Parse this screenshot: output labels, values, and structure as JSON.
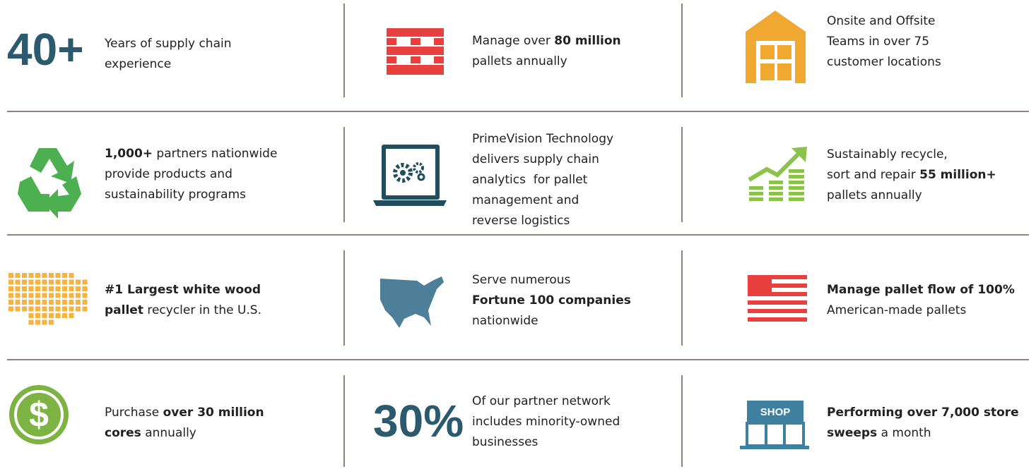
{
  "cells": [
    {
      "big": "40+",
      "lines": [
        [
          {
            "t": "Years of supply chain"
          }
        ],
        [
          {
            "t": "experience"
          }
        ]
      ]
    },
    {
      "lines": [
        [
          {
            "t": "Manage over "
          },
          {
            "b": "80 million"
          }
        ],
        [
          {
            "t": "pallets annually"
          }
        ]
      ]
    },
    {
      "lines": [
        [
          {
            "t": "Onsite and Offsite"
          }
        ],
        [
          {
            "t": "Teams in over 75"
          }
        ],
        [
          {
            "t": "customer locations"
          }
        ]
      ]
    },
    {
      "lines": [
        [
          {
            "b": "1,000+"
          },
          {
            "t": " partners nationwide"
          }
        ],
        [
          {
            "t": "provide products and"
          }
        ],
        [
          {
            "t": "sustainability programs"
          }
        ]
      ]
    },
    {
      "lines": [
        [
          {
            "t": "PrimeVision Technology"
          }
        ],
        [
          {
            "t": "delivers supply chain"
          }
        ],
        [
          {
            "t": "analytics  for pallet"
          }
        ],
        [
          {
            "t": "management and"
          }
        ],
        [
          {
            "t": "reverse logistics"
          }
        ]
      ]
    },
    {
      "lines": [
        [
          {
            "t": "Sustainably recycle,"
          }
        ],
        [
          {
            "t": "sort and repair "
          },
          {
            "b": "55 million+"
          }
        ],
        [
          {
            "t": "pallets annually"
          }
        ]
      ]
    },
    {
      "lines": [
        [
          {
            "b": "#1 Largest white wood"
          }
        ],
        [
          {
            "b": "pallet"
          },
          {
            "t": " recycler in the U.S."
          }
        ]
      ]
    },
    {
      "lines": [
        [
          {
            "t": "Serve numerous"
          }
        ],
        [
          {
            "b": "Fortune 100 companies"
          }
        ],
        [
          {
            "t": "nationwide"
          }
        ]
      ]
    },
    {
      "lines": [
        [
          {
            "b": "Manage pallet flow of 100%"
          }
        ],
        [
          {
            "t": "American-made pallets"
          }
        ]
      ]
    },
    {
      "lines": [
        [
          {
            "t": "Purchase "
          },
          {
            "b": "over 30 million"
          }
        ],
        [
          {
            "b": "cores"
          },
          {
            "t": " annually"
          }
        ]
      ]
    },
    {
      "big": "30%",
      "lines": [
        [
          {
            "t": "Of our partner network"
          }
        ],
        [
          {
            "t": "includes minority-owned"
          }
        ],
        [
          {
            "t": "businesses"
          }
        ]
      ]
    },
    {
      "lines": [
        [
          {
            "b": "Performing over 7,000 store"
          }
        ],
        [
          {
            "b": "sweeps"
          },
          {
            "t": " a month"
          }
        ]
      ]
    }
  ],
  "shop_sign": "SHOP"
}
